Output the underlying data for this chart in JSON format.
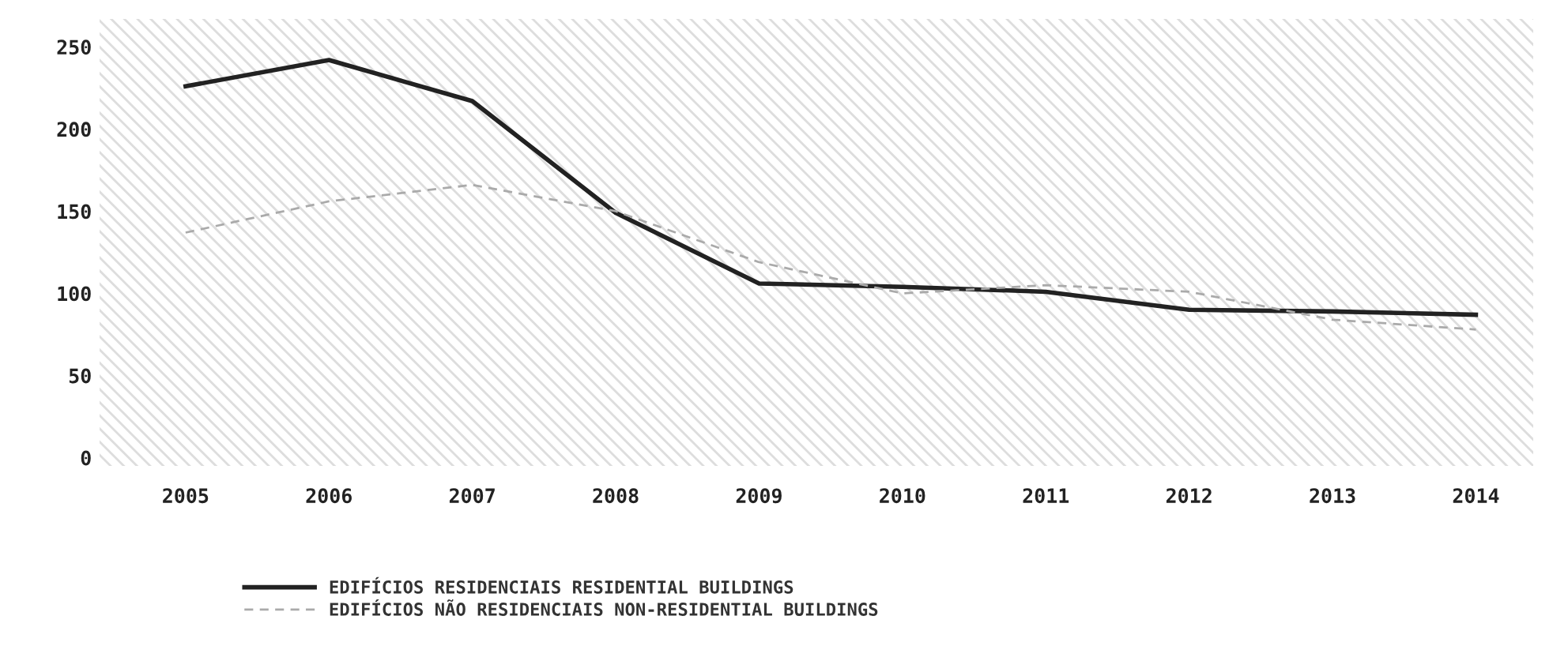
{
  "chart_data": {
    "type": "line",
    "categories": [
      "2005",
      "2006",
      "2007",
      "2008",
      "2009",
      "2010",
      "2011",
      "2012",
      "2013",
      "2014"
    ],
    "series": [
      {
        "name": "EDIFÍCIOS RESIDENCIAIS RESIDENTIAL BUILDINGS",
        "color": "#222222",
        "line_style": "solid",
        "values": [
          226,
          242,
          217,
          149,
          106,
          104,
          101,
          90,
          89,
          87
        ]
      },
      {
        "name": "EDIFÍCIOS NÃO RESIDENCIAIS NON-RESIDENTIAL BUILDINGS",
        "color": "#aaaaaa",
        "line_style": "dashed",
        "values": [
          137,
          156,
          166,
          150,
          119,
          100,
          105,
          101,
          84,
          78
        ]
      }
    ],
    "ylim": [
      -5,
      267
    ],
    "yticks": [
      0,
      50,
      100,
      150,
      200,
      250
    ],
    "grid": false,
    "legend": "bottom",
    "marker": "none"
  }
}
